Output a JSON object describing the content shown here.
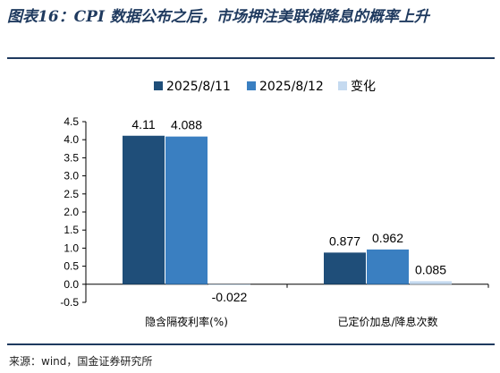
{
  "header": {
    "title": "图表16：CPI 数据公布之后，市场押注美联储降息的概率上升"
  },
  "footer": {
    "source": "来源：wind，国金证券研究所"
  },
  "colors": {
    "title": "#1f3a5f",
    "series1": "#1f4e79",
    "series2": "#3a7fc1",
    "series3": "#c5daf0"
  },
  "chart_data": {
    "type": "bar",
    "categories": [
      "隐含隔夜利率(%)",
      "已定价加息/降息次数"
    ],
    "series": [
      {
        "name": "2025/8/11",
        "values": [
          4.11,
          0.877
        ],
        "labels": [
          "4.11",
          "0.877"
        ],
        "color": "#1f4e79"
      },
      {
        "name": "2025/8/12",
        "values": [
          4.088,
          0.962
        ],
        "labels": [
          "4.088",
          "0.962"
        ],
        "color": "#3a7fc1"
      },
      {
        "name": "变化",
        "values": [
          -0.022,
          0.085
        ],
        "labels": [
          "-0.022",
          "0.085"
        ],
        "color": "#c5daf0"
      }
    ],
    "ylim": [
      -0.5,
      4.5
    ],
    "yticks": [
      "-0.5",
      "0.0",
      "0.5",
      "1.0",
      "1.5",
      "2.0",
      "2.5",
      "3.0",
      "3.5",
      "4.0",
      "4.5"
    ],
    "legend": "top",
    "grid": false
  }
}
